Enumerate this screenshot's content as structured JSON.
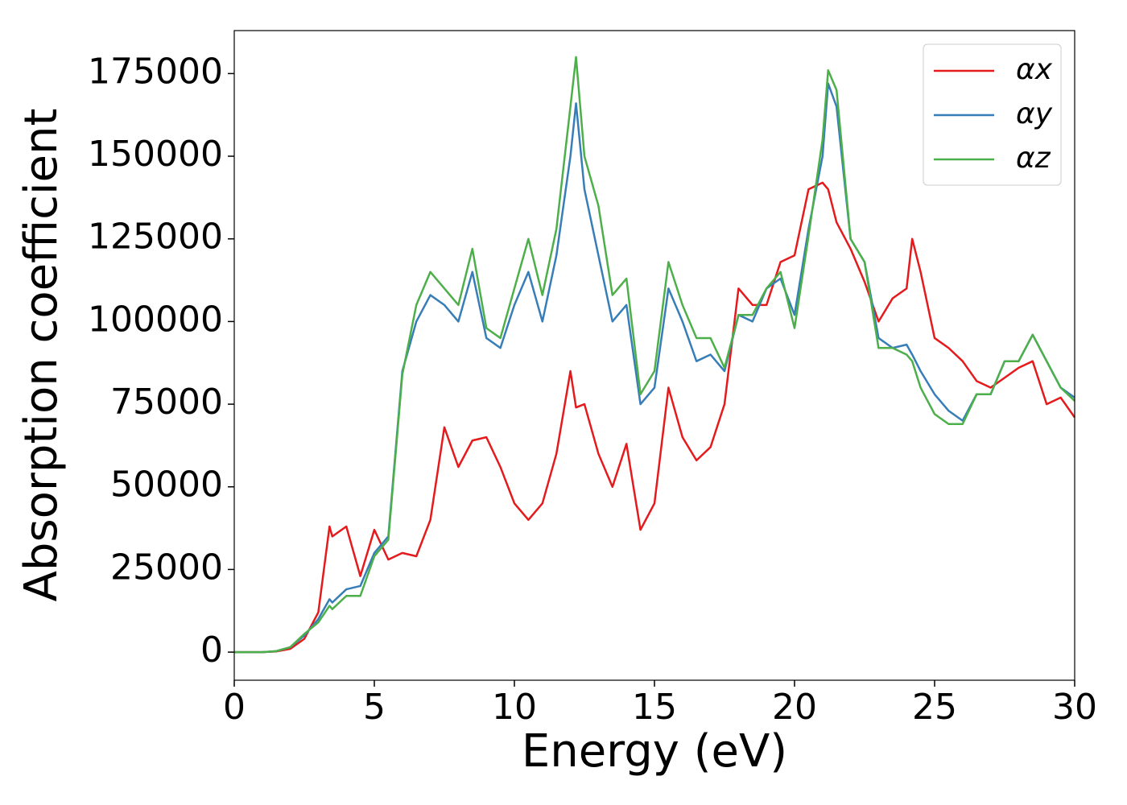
{
  "chart_data": {
    "type": "line",
    "xlabel": "Energy (eV)",
    "ylabel": "Absorption coefficient",
    "x": [
      0,
      0.5,
      1,
      1.5,
      2,
      2.5,
      3,
      3.4,
      3.5,
      4,
      4.5,
      5,
      5.5,
      6,
      6.5,
      7,
      7.5,
      8,
      8.5,
      9,
      9.5,
      10,
      10.5,
      11,
      11.5,
      12,
      12.2,
      12.5,
      13,
      13.5,
      14,
      14.5,
      15,
      15.5,
      16,
      16.5,
      17,
      17.5,
      18,
      18.5,
      19,
      19.5,
      20,
      20.5,
      21,
      21.2,
      21.5,
      22,
      22.5,
      23,
      23.5,
      24,
      24.2,
      24.5,
      25,
      25.5,
      26,
      26.5,
      27,
      27.5,
      28,
      28.5,
      29,
      29.5,
      30
    ],
    "series": [
      {
        "name": "αx",
        "color": "#e41a1c",
        "values": [
          0,
          0,
          0,
          200,
          1000,
          4000,
          12000,
          38000,
          35000,
          38000,
          23000,
          37000,
          28000,
          30000,
          29000,
          40000,
          68000,
          56000,
          64000,
          65000,
          56000,
          45000,
          40000,
          45000,
          60000,
          85000,
          74000,
          75000,
          60000,
          50000,
          63000,
          37000,
          45000,
          80000,
          65000,
          58000,
          62000,
          75000,
          110000,
          105000,
          105000,
          118000,
          120000,
          140000,
          142000,
          140000,
          130000,
          122000,
          112000,
          100000,
          107000,
          110000,
          125000,
          115000,
          95000,
          92000,
          88000,
          82000,
          80000,
          83000,
          86000,
          88000,
          75000,
          77000,
          71000
        ]
      },
      {
        "name": "αy",
        "color": "#377eb8",
        "values": [
          0,
          0,
          0,
          300,
          1500,
          5000,
          10000,
          16000,
          15000,
          19000,
          20000,
          30000,
          35000,
          85000,
          100000,
          108000,
          105000,
          100000,
          115000,
          95000,
          92000,
          105000,
          115000,
          100000,
          120000,
          150000,
          166000,
          140000,
          120000,
          100000,
          105000,
          75000,
          80000,
          110000,
          100000,
          88000,
          90000,
          85000,
          102000,
          100000,
          110000,
          113000,
          102000,
          128000,
          150000,
          172000,
          165000,
          125000,
          118000,
          95000,
          92000,
          93000,
          90000,
          85000,
          78000,
          73000,
          70000,
          78000,
          78000,
          88000,
          88000,
          96000,
          88000,
          80000,
          77000
        ]
      },
      {
        "name": "αz",
        "color": "#4daf4a",
        "values": [
          0,
          0,
          0,
          300,
          1500,
          5500,
          9000,
          14000,
          13000,
          17000,
          17000,
          29000,
          34000,
          84000,
          105000,
          115000,
          110000,
          105000,
          122000,
          98000,
          95000,
          110000,
          125000,
          108000,
          128000,
          165000,
          180000,
          150000,
          135000,
          108000,
          113000,
          78000,
          85000,
          118000,
          105000,
          95000,
          95000,
          86000,
          102000,
          102000,
          110000,
          115000,
          98000,
          126000,
          155000,
          176000,
          170000,
          125000,
          118000,
          92000,
          92000,
          90000,
          88000,
          80000,
          72000,
          69000,
          69000,
          78000,
          78000,
          88000,
          88000,
          96000,
          88000,
          80000,
          76000
        ]
      }
    ],
    "xlim": [
      0,
      30
    ],
    "xticks": [
      0,
      5,
      10,
      15,
      20,
      25,
      30
    ],
    "ylim": [
      -8500,
      188000
    ],
    "yticks": [
      0,
      25000,
      50000,
      75000,
      100000,
      125000,
      150000,
      175000
    ],
    "legend": "upper right",
    "grid": false
  }
}
